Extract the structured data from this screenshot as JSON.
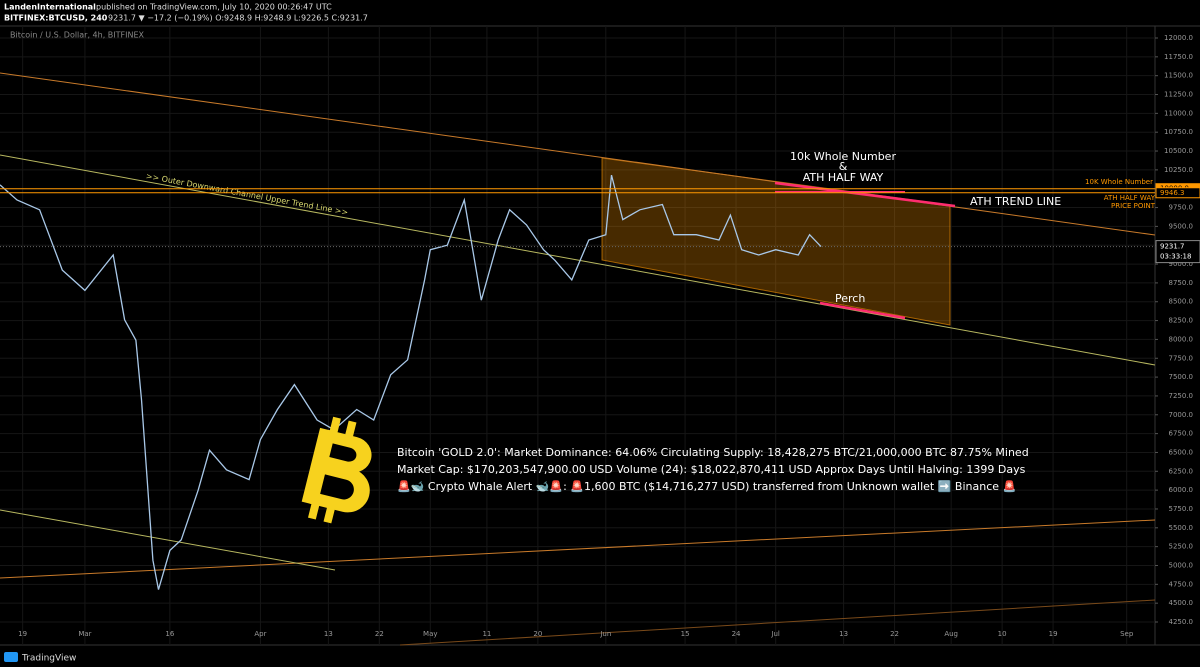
{
  "header": {
    "author": "LandenInternational",
    "published": "published on TradingView.com, July 10, 2020 00:26:47 UTC",
    "symbol": "BITFINEX:BTCUSD, 240",
    "quote": "9231.7 ▼ −17.2 (−0.19%) O:9248.9 H:9248.9 L:9226.5 C:9231.7",
    "footer": "TradingView"
  },
  "chart_data": {
    "type": "line",
    "title": "Bitcoin / U.S. Dollar, 4h, BITFINEX",
    "x": [
      "Feb 15",
      "Feb 18",
      "Feb 22",
      "Feb 26",
      "Mar 1",
      "Mar 6",
      "Mar 8",
      "Mar 10",
      "Mar 11",
      "Mar 13",
      "Mar 14",
      "Mar 16",
      "Mar 18",
      "Mar 21",
      "Mar 23",
      "Mar 26",
      "Mar 30",
      "Apr 1",
      "Apr 4",
      "Apr 7",
      "Apr 11",
      "Apr 14",
      "Apr 18",
      "Apr 21",
      "Apr 24",
      "Apr 27",
      "Apr 30",
      "May 1",
      "May 4",
      "May 7",
      "May 10",
      "May 13",
      "May 15",
      "May 18",
      "May 21",
      "May 23",
      "May 26",
      "May 29",
      "Jun 1",
      "Jun 2",
      "Jun 4",
      "Jun 7",
      "Jun 11",
      "Jun 13",
      "Jun 17",
      "Jun 21",
      "Jun 23",
      "Jun 25",
      "Jun 28",
      "Jul 1",
      "Jul 5",
      "Jul 7",
      "Jul 9"
    ],
    "series": [
      {
        "name": "BTCUSD",
        "color": "#a9c8e8",
        "values": [
          10050,
          9850,
          9720,
          8920,
          8650,
          9120,
          8260,
          7990,
          7200,
          5070,
          4680,
          5200,
          5340,
          6000,
          6530,
          6270,
          6140,
          6670,
          7070,
          7400,
          6930,
          6800,
          7070,
          6930,
          7530,
          7730,
          8790,
          9190,
          9250,
          9850,
          8520,
          9320,
          9720,
          9520,
          9190,
          9050,
          8790,
          9320,
          9390,
          10180,
          9590,
          9720,
          9790,
          9390,
          9390,
          9320,
          9650,
          9190,
          9120,
          9190,
          9120,
          9390,
          9231.7
        ]
      }
    ],
    "xlim": [
      "Feb 15",
      "Sep 6"
    ],
    "xticks": [
      {
        "value": "Feb 19",
        "label": "19"
      },
      {
        "value": "Mar 1",
        "label": "Mar"
      },
      {
        "value": "Mar 16",
        "label": "16"
      },
      {
        "value": "Apr 1",
        "label": "Apr"
      },
      {
        "value": "Apr 13",
        "label": "13"
      },
      {
        "value": "Apr 22",
        "label": "22"
      },
      {
        "value": "May 1",
        "label": "May"
      },
      {
        "value": "May 11",
        "label": "11"
      },
      {
        "value": "May 20",
        "label": "20"
      },
      {
        "value": "Jun 1",
        "label": "Jun"
      },
      {
        "value": "Jun 15",
        "label": "15"
      },
      {
        "value": "Jun 24",
        "label": "24"
      },
      {
        "value": "Jul 1",
        "label": "Jul"
      },
      {
        "value": "Jul 13",
        "label": "13"
      },
      {
        "value": "Jul 22",
        "label": "22"
      },
      {
        "value": "Aug 1",
        "label": "Aug"
      },
      {
        "value": "Aug 10",
        "label": "10"
      },
      {
        "value": "Aug 19",
        "label": "19"
      },
      {
        "value": "Sep 1",
        "label": "Sep"
      }
    ],
    "ylim": [
      4250,
      12000
    ],
    "yticks": [
      {
        "value": 4250,
        "label": "4250.0"
      },
      {
        "value": 4500,
        "label": "4500.0"
      },
      {
        "value": 4750,
        "label": "4750.0"
      },
      {
        "value": 5000,
        "label": "5000.0"
      },
      {
        "value": 5250,
        "label": "5250.0"
      },
      {
        "value": 5500,
        "label": "5500.0"
      },
      {
        "value": 5750,
        "label": "5750.0"
      },
      {
        "value": 6000,
        "label": "6000.0"
      },
      {
        "value": 6250,
        "label": "6250.0"
      },
      {
        "value": 6500,
        "label": "6500.0"
      },
      {
        "value": 6750,
        "label": "6750.0"
      },
      {
        "value": 7000,
        "label": "7000.0"
      },
      {
        "value": 7250,
        "label": "7250.0"
      },
      {
        "value": 7500,
        "label": "7500.0"
      },
      {
        "value": 7750,
        "label": "7750.0"
      },
      {
        "value": 8000,
        "label": "8000.0"
      },
      {
        "value": 8250,
        "label": "8250.0"
      },
      {
        "value": 8500,
        "label": "8500.0"
      },
      {
        "value": 8750,
        "label": "8750.0"
      },
      {
        "value": 9000,
        "label": "9000.0"
      },
      {
        "value": 9250,
        "label": "9250.0"
      },
      {
        "value": 9500,
        "label": "9500.0"
      },
      {
        "value": 9750,
        "label": "9750.0"
      },
      {
        "value": 10000,
        "label": "10000.0"
      },
      {
        "value": 10250,
        "label": "10250.0"
      },
      {
        "value": 10500,
        "label": "10500.0"
      },
      {
        "value": 10750,
        "label": "10750.0"
      },
      {
        "value": 11000,
        "label": "11000.0"
      },
      {
        "value": 11250,
        "label": "11250.0"
      },
      {
        "value": 11500,
        "label": "11500.0"
      },
      {
        "value": 11750,
        "label": "11750.0"
      },
      {
        "value": 12000,
        "label": "12000.0"
      }
    ],
    "grid": true,
    "price_lines": [
      {
        "value": 10000,
        "label": "10000.0",
        "color": "#ff9800"
      },
      {
        "value": 9946.3,
        "label": "9946.3",
        "color": "#ff9800"
      }
    ],
    "last_price": {
      "value": 9231.7,
      "label": "9231.7"
    },
    "countdown": "03:33:18",
    "annotations": {
      "whole": "10k Whole Number",
      "amp": "&",
      "half": "ATH HALF WAY",
      "trend": "ATH TREND LINE",
      "perch": "Perch",
      "channel": ">> Outer Downward Channel Upper Trend Line >>",
      "right_whole": "10K Whole Number",
      "right_half": "ATH HALF WAY",
      "right_point": "PRICE POINT",
      "info": [
        "Bitcoin 'GOLD 2.0': Market Dominance: 64.06%  Circulating Supply: 18,428,275 BTC/21,000,000 BTC 87.75% Mined",
        "Market Cap: $170,203,547,900.00 USD Volume (24): $18,022,870,411 USD Approx Days Until Halving: 1399 Days",
        "🚨🐋 Crypto Whale Alert 🐋🚨:  🚨1,600 BTC ($14,716,277 USD) transferred from Unknown wallet ➡️ Binance 🚨"
      ]
    }
  }
}
